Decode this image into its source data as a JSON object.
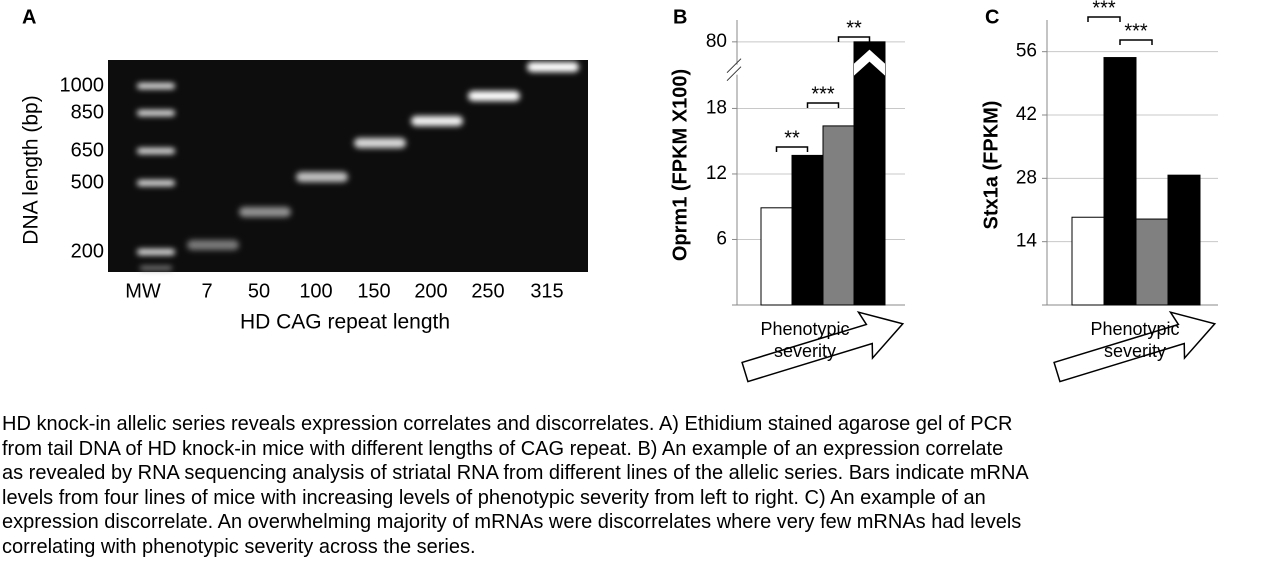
{
  "panel_a": {
    "label": "A",
    "y_label": "DNA length (bp)",
    "x_label": "HD CAG repeat length",
    "ladder_labels": [
      "1000",
      "850",
      "650",
      "500",
      "200"
    ],
    "lanes": [
      "MW",
      "7",
      "50",
      "100",
      "150",
      "200",
      "250",
      "315"
    ]
  },
  "chart_data": [
    {
      "type": "bar",
      "panel": "B",
      "ylabel": "Oprm1 (FPKM X100)",
      "xlabel": "Phenotypic severity",
      "values": [
        8.9,
        13.7,
        16.4,
        80
      ],
      "colors": [
        "#ffffff",
        "#000000",
        "#808080",
        "#000000"
      ],
      "ylim": [
        0,
        82
      ],
      "yticks": [
        6,
        12,
        18,
        80
      ],
      "axis_break": [
        21,
        78
      ],
      "grid": true,
      "annotations": [
        "**",
        "***",
        "**"
      ]
    },
    {
      "type": "bar",
      "panel": "C",
      "ylabel": "Stx1a (FPKM)",
      "xlabel": "Phenotypic severity",
      "values": [
        19.4,
        54.7,
        19.0,
        28.7
      ],
      "colors": [
        "#ffffff",
        "#000000",
        "#808080",
        "#000000"
      ],
      "ylim": [
        0,
        63
      ],
      "yticks": [
        14,
        28,
        42,
        56
      ],
      "grid": true,
      "annotations": [
        "***",
        "***"
      ]
    }
  ],
  "caption": [
    "HD knock-in allelic series reveals expression correlates and discorrelates.  A) Ethidium stained agarose gel of PCR",
    "from tail DNA of HD knock-in mice with different lengths of CAG repeat.  B) An example of an expression correlate",
    "as revealed by RNA sequencing analysis of striatal RNA from different lines of the allelic series.  Bars indicate mRNA",
    "levels from four lines of mice with increasing levels of phenotypic severity from left to right.  C) An example of an",
    "expression discorrelate.  An overwhelming majority of mRNAs were discorrelates where very few mRNAs had levels",
    "correlating with phenotypic severity across the series."
  ]
}
